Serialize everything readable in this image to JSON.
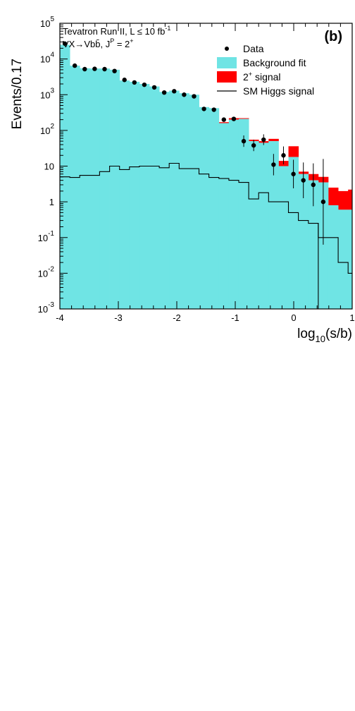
{
  "chart_data": [
    {
      "type": "bar",
      "panel_label": "(b)",
      "info_line1": "Tevatron Run II, L ≤ 10 fb",
      "info_line1_sup": "-1",
      "info_line2_prefix": "VX→Vbb̄, J",
      "info_line2_sup1": "P",
      "info_line2_mid": " = 2",
      "info_line2_sup2": "+",
      "ylabel": "Events/0.17",
      "xlabel_main": "log",
      "xlabel_sub": "10",
      "xlabel_tail": "(s/b)",
      "xlim": [
        -4,
        1
      ],
      "ylim": [
        0.001,
        100000
      ],
      "yscale": "log",
      "xticks": [
        "-4",
        "-3",
        "-2",
        "-1",
        "0",
        "1"
      ],
      "yticks": [
        {
          "base": "10",
          "exp": "-3"
        },
        {
          "base": "10",
          "exp": "-2"
        },
        {
          "base": "10",
          "exp": "-1"
        },
        {
          "base": "1",
          "exp": ""
        },
        {
          "base": "10",
          "exp": ""
        },
        {
          "base": "10",
          "exp": "2"
        },
        {
          "base": "10",
          "exp": "3"
        },
        {
          "base": "10",
          "exp": "4"
        },
        {
          "base": "10",
          "exp": "5"
        }
      ],
      "legend": [
        {
          "kind": "marker",
          "label": "Data"
        },
        {
          "kind": "fill",
          "label": "Background fit",
          "color": "#6fe4e4"
        },
        {
          "kind": "fill",
          "label": "2",
          "label_sup": "+",
          "label_tail": " signal",
          "color": "#ff0000"
        },
        {
          "kind": "line",
          "label": "SM Higgs signal"
        }
      ],
      "colors": {
        "background": "#6fe4e4",
        "signal": "#ff0000"
      },
      "bin_edges": [
        -4.0,
        -3.83,
        -3.66,
        -3.49,
        -3.32,
        -3.15,
        -2.98,
        -2.81,
        -2.64,
        -2.47,
        -2.3,
        -2.13,
        -1.96,
        -1.79,
        -1.62,
        -1.45,
        -1.28,
        -1.11,
        -0.94,
        -0.77,
        -0.6,
        -0.43,
        -0.26,
        -0.09,
        0.08,
        0.25,
        0.42,
        0.59,
        0.76,
        0.93,
        1.0
      ],
      "series": [
        {
          "name": "Background fit",
          "values": [
            25000,
            6500,
            5500,
            5400,
            5400,
            5000,
            2500,
            2300,
            2000,
            1700,
            1200,
            1300,
            1100,
            1000,
            450,
            420,
            160,
            200,
            210,
            50,
            45,
            50,
            10,
            18,
            6,
            4,
            3.5,
            0.8,
            0.6,
            0.6
          ]
        },
        {
          "name": "2+ signal",
          "values": [
            25000,
            6500,
            5500,
            5400,
            5400,
            5000,
            2500,
            2300,
            2000,
            1700,
            1200,
            1300,
            1100,
            1000,
            450,
            420,
            170,
            220,
            220,
            55,
            50,
            58,
            14,
            36,
            7,
            6,
            5,
            2.5,
            2.0,
            2.2
          ]
        },
        {
          "name": "SM Higgs signal",
          "values": [
            5.0,
            4.8,
            5.5,
            5.5,
            7.0,
            10.0,
            8.0,
            9.5,
            10.0,
            10.0,
            9.0,
            12.0,
            8.5,
            8.5,
            6.0,
            4.8,
            4.5,
            4.0,
            3.5,
            1.2,
            1.8,
            1.0,
            1.0,
            0.5,
            0.3,
            0.25,
            0.1,
            0.1,
            0.02,
            0.01
          ]
        },
        {
          "name": "Data",
          "points": [
            [
              -3.915,
              27000,
              0
            ],
            [
              -3.745,
              6500,
              0
            ],
            [
              -3.575,
              5200,
              0
            ],
            [
              -3.405,
              5300,
              0
            ],
            [
              -3.235,
              5200,
              0
            ],
            [
              -3.065,
              4600,
              0
            ],
            [
              -2.895,
              2600,
              0
            ],
            [
              -2.725,
              2200,
              0
            ],
            [
              -2.555,
              1900,
              0
            ],
            [
              -2.385,
              1600,
              0
            ],
            [
              -2.215,
              1150,
              0
            ],
            [
              -2.045,
              1250,
              0
            ],
            [
              -1.875,
              1000,
              0
            ],
            [
              -1.705,
              900,
              0
            ],
            [
              -1.535,
              400,
              0
            ],
            [
              -1.365,
              380,
              0
            ],
            [
              -1.195,
              200,
              0
            ],
            [
              -1.025,
              210,
              0
            ],
            [
              -0.855,
              50,
              0.16
            ],
            [
              -0.685,
              38,
              0.16
            ],
            [
              -0.515,
              55,
              0.15
            ],
            [
              -0.345,
              11,
              0.3
            ],
            [
              -0.175,
              20,
              0.25
            ],
            [
              -0.005,
              6.0,
              0.4
            ],
            [
              0.165,
              4.0,
              0.5
            ],
            [
              0.335,
              3.0,
              0.6
            ],
            [
              0.505,
              1.0,
              1.2
            ]
          ]
        }
      ]
    }
  ]
}
